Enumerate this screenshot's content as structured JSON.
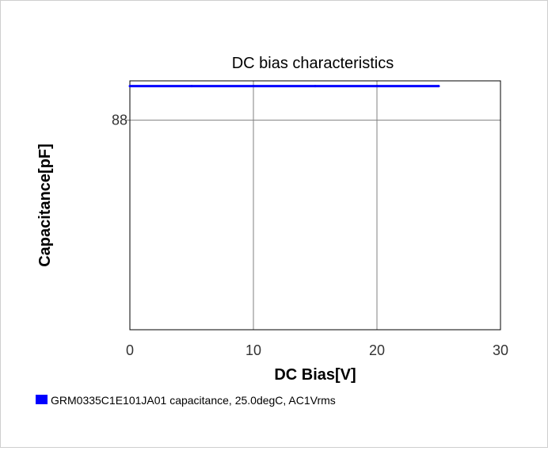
{
  "chart_data": {
    "type": "line",
    "title": "DC bias characteristics",
    "xlabel": "DC Bias[V]",
    "ylabel": "Capacitance[pF]",
    "xlim": [
      0,
      30
    ],
    "ylim": [
      80,
      89.5
    ],
    "x_ticks": [
      0,
      10,
      20,
      30
    ],
    "y_ticks": [
      88
    ],
    "grid": true,
    "legend_position": "bottom-left",
    "series": [
      {
        "name": "GRM0335C1E101JA01 capacitance, 25.0degC, AC1Vrms",
        "color": "#0000ff",
        "x": [
          0,
          5,
          10,
          15,
          20,
          25
        ],
        "y": [
          89.3,
          89.3,
          89.3,
          89.3,
          89.3,
          89.3
        ]
      }
    ]
  }
}
